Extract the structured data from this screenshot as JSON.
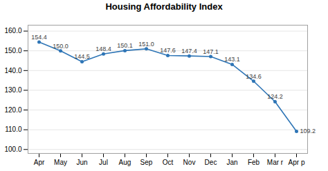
{
  "chart_data": {
    "type": "line",
    "title": "Housing Affordability Index",
    "categories": [
      "Apr",
      "May",
      "Jun",
      "Jul",
      "Aug",
      "Sep",
      "Oct",
      "Nov",
      "Dec",
      "Jan",
      "Feb",
      "Mar r",
      "Apr p"
    ],
    "values": [
      154.4,
      150.0,
      144.5,
      148.4,
      150.1,
      151.0,
      147.6,
      147.4,
      147.1,
      143.1,
      134.6,
      124.2,
      109.2
    ],
    "value_labels": [
      "154.4",
      "150.0",
      "144.5",
      "148.4",
      "150.1",
      "151.0",
      "147.6",
      "147.4",
      "147.1",
      "143.1",
      "134.6",
      "124.2",
      "109.2"
    ],
    "data_labels": true,
    "color": "#2E75B6",
    "marker": "circle",
    "ylim": [
      98.0,
      163.0
    ],
    "yticks": [
      {
        "value": 100,
        "label": "100.0"
      },
      {
        "value": 110,
        "label": "110.0"
      },
      {
        "value": 120,
        "label": "120.0"
      },
      {
        "value": 130,
        "label": "130.0"
      },
      {
        "value": 140,
        "label": "140.0"
      },
      {
        "value": 150,
        "label": "150.0"
      },
      {
        "value": 160,
        "label": "160.0"
      }
    ],
    "grid": true
  }
}
